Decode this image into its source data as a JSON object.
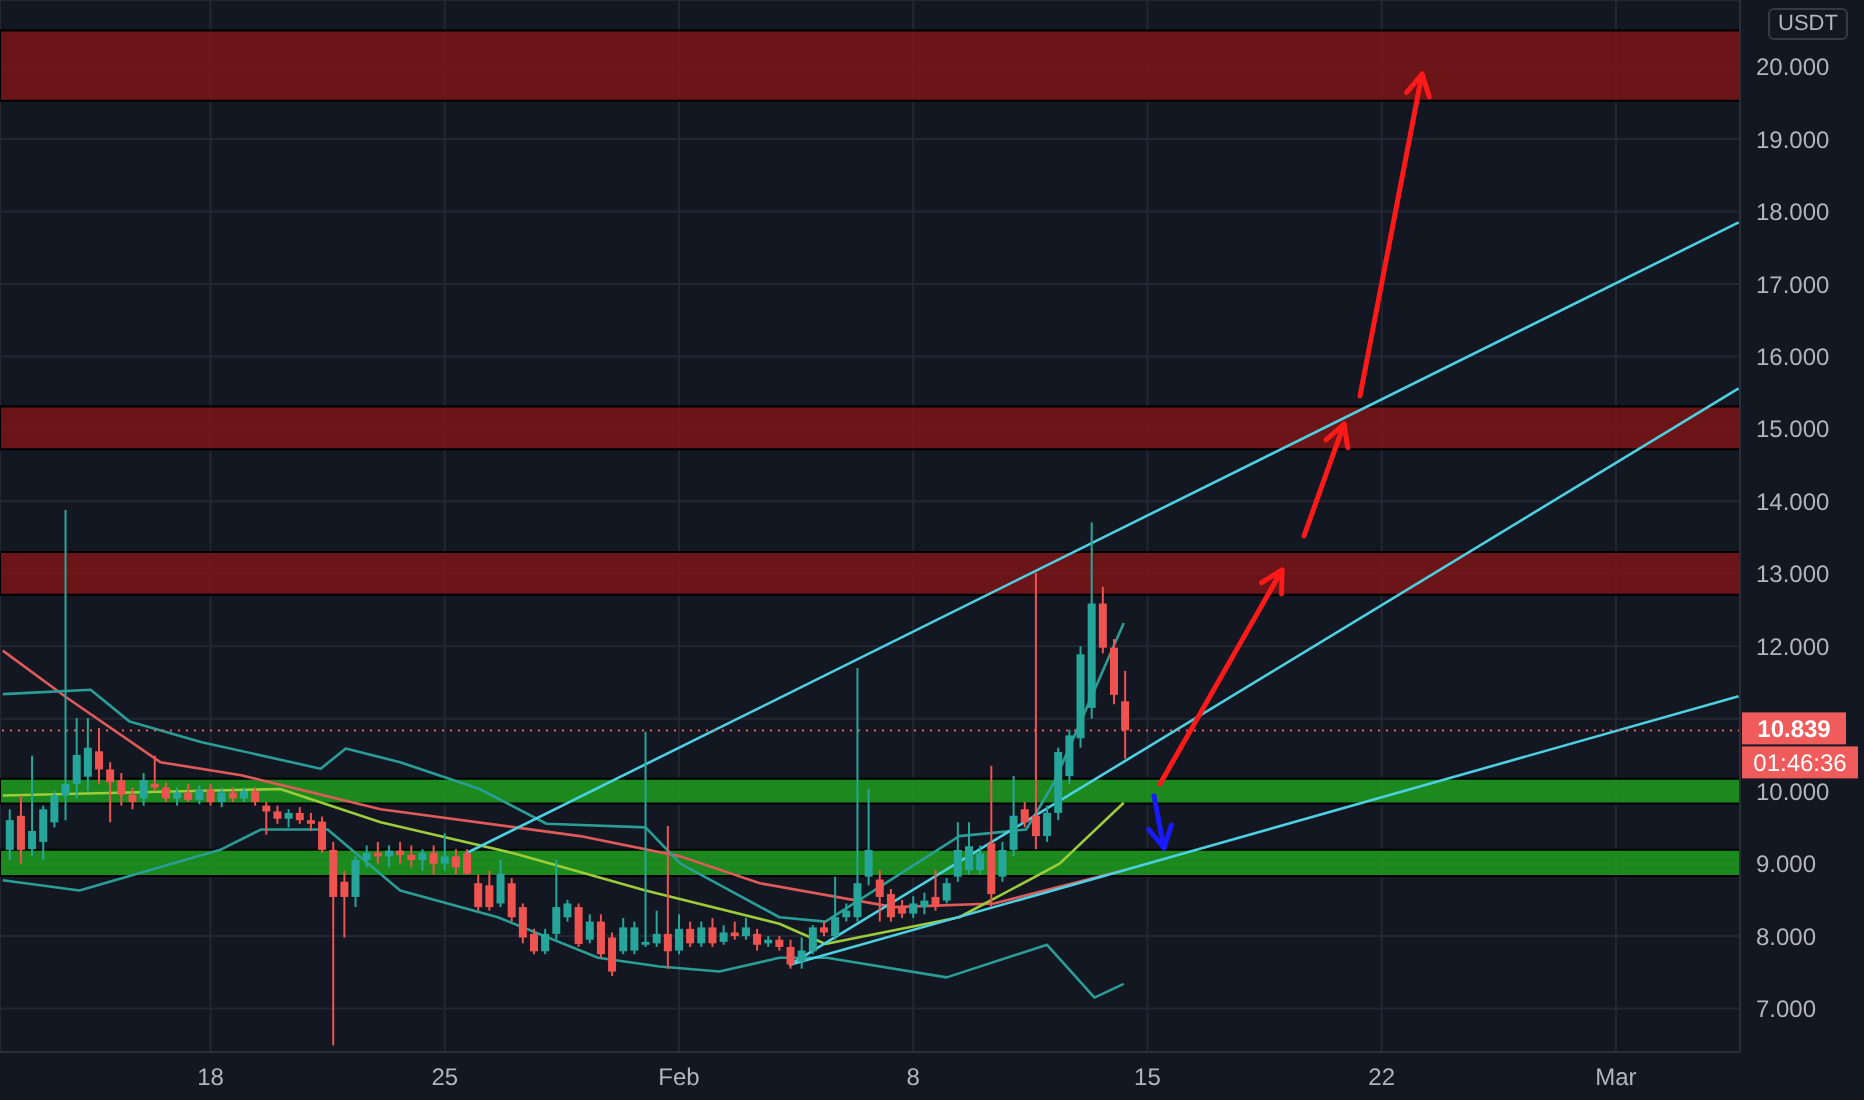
{
  "chart_data": {
    "type": "candlestick",
    "xlim": [
      "--01-11T17:00",
      "--03-04T17:00"
    ],
    "ylim": [
      6.4,
      20.92
    ],
    "xticks": [
      {
        "value": "--01-18",
        "label": "18"
      },
      {
        "value": "--01-25",
        "label": "25"
      },
      {
        "value": "--02-01",
        "label": "Feb"
      },
      {
        "value": "--02-08",
        "label": "8"
      },
      {
        "value": "--02-15",
        "label": "15"
      },
      {
        "value": "--02-22",
        "label": "22"
      },
      {
        "value": "--03-01",
        "label": "Mar"
      }
    ],
    "yticks": [
      {
        "value": 7,
        "label": "7.000"
      },
      {
        "value": 8,
        "label": "8.000"
      },
      {
        "value": 9,
        "label": "9.000"
      },
      {
        "value": 10,
        "label": "10.000"
      },
      {
        "value": 11,
        "label": null
      },
      {
        "value": 12,
        "label": "12.000"
      },
      {
        "value": 13,
        "label": "13.000"
      },
      {
        "value": 14,
        "label": "14.000"
      },
      {
        "value": 15,
        "label": "15.000"
      },
      {
        "value": 16,
        "label": "16.000"
      },
      {
        "value": 17,
        "label": "17.000"
      },
      {
        "value": 18,
        "label": "18.000"
      },
      {
        "value": 19,
        "label": "19.000"
      },
      {
        "value": 20,
        "label": "20.000"
      }
    ],
    "grid": true,
    "annotations": [
      "USDT",
      "01:46:36"
    ],
    "ref_lines": [
      {
        "axis": "y",
        "value": 10.839,
        "label": "10.839",
        "color": "#f05b5b",
        "line_style": "dotted"
      }
    ],
    "bands": [
      {
        "axis": "y",
        "from": 19.53,
        "to": 20.5,
        "color": "#7b1518"
      },
      {
        "axis": "y",
        "from": 14.72,
        "to": 15.31,
        "color": "#7b1518"
      },
      {
        "axis": "y",
        "from": 12.71,
        "to": 13.3,
        "color": "#7b1518"
      },
      {
        "axis": "y",
        "from": 9.83,
        "to": 10.17,
        "color": "#1d9e1d"
      },
      {
        "axis": "y",
        "from": 8.83,
        "to": 9.19,
        "color": "#1d9e1d"
      }
    ],
    "series": [
      {
        "type": "line",
        "color": "#e05a5a",
        "x": [
          "--01-11T19:00",
          "--01-13T17:00",
          "--01-16T12:00",
          "--01-18T22:00",
          "--01-23T02:00",
          "--01-29T01:00",
          "--02-01T01:00",
          "--02-03T10:00",
          "--02-07T10:00",
          "--02-10T10:00",
          "--02-14T07:00"
        ],
        "values": [
          11.94,
          11.29,
          10.4,
          10.22,
          9.75,
          9.38,
          9.1,
          8.73,
          8.4,
          8.45,
          8.91
        ]
      },
      {
        "type": "line",
        "color": "#2a9d96",
        "x": [
          "--01-11T19:00",
          "--01-14T10:00",
          "--01-15T14:00",
          "--01-17T17:00",
          "--01-21T07:00",
          "--01-22T01:00",
          "--01-23T16:00",
          "--01-26T01:00",
          "--01-28T01:00",
          "--01-31T00:00",
          "--02-01T01:00",
          "--02-04T00:00",
          "--02-05T09:00",
          "--02-09T09:00",
          "--02-11T09:00",
          "--02-12T05:00",
          "--02-14T07:00"
        ],
        "values": [
          11.34,
          11.4,
          10.96,
          10.68,
          10.31,
          10.59,
          10.4,
          10.03,
          9.55,
          9.5,
          9.0,
          8.26,
          8.2,
          9.38,
          9.47,
          10.12,
          12.32
        ]
      },
      {
        "type": "line",
        "color": "#9ccc3a",
        "x": [
          "--01-11T19:00",
          "--01-20T02:00",
          "--01-23T02:00",
          "--01-27T02:00",
          "--01-31T00:00",
          "--02-04T00:00",
          "--02-05T09:00",
          "--02-09T09:00",
          "--02-12T09:00",
          "--02-14T07:00"
        ],
        "values": [
          9.94,
          10.03,
          9.57,
          9.14,
          8.63,
          8.17,
          7.89,
          8.26,
          9.0,
          9.84
        ]
      },
      {
        "type": "line",
        "color": "#2a9d96",
        "x": [
          "--01-11T19:00",
          "--01-14T02:00",
          "--01-18T07:00",
          "--01-19T12:00",
          "--01-21T12:00",
          "--01-23T16:00",
          "--01-26T14:00",
          "--01-29T14:00",
          "--01-31T10:00",
          "--02-02T05:00",
          "--02-04T00:00",
          "--02-05T10:00",
          "--02-09T00:00",
          "--02-12T00:00",
          "--02-13T10:00",
          "--02-14T07:00"
        ],
        "values": [
          8.77,
          8.63,
          9.19,
          9.47,
          9.47,
          8.63,
          8.26,
          7.7,
          7.58,
          7.51,
          7.7,
          7.7,
          7.43,
          7.88,
          7.15,
          7.34
        ]
      },
      {
        "type": "line",
        "color": "#4dd0e1",
        "x": [
          "--01-25T15:00",
          "--03-04T16:00"
        ],
        "values": [
          9.14,
          17.85
        ]
      },
      {
        "type": "line",
        "color": "#4dd0e1",
        "x": [
          "--02-04T07:00",
          "--03-04T16:00"
        ],
        "values": [
          7.6,
          15.56
        ]
      },
      {
        "type": "line",
        "color": "#4dd0e1",
        "x": [
          "--02-04T07:00",
          "--03-04T16:00"
        ],
        "values": [
          7.6,
          11.31
        ]
      },
      {
        "x": [
          "--01-12T00:00",
          "--01-12T08:00",
          "--01-12T16:00",
          "--01-13T00:00",
          "--01-13T08:00",
          "--01-13T16:00",
          "--01-14T00:00",
          "--01-14T08:00",
          "--01-14T16:00",
          "--01-15T00:00",
          "--01-15T08:00",
          "--01-15T16:00",
          "--01-16T00:00",
          "--01-16T08:00",
          "--01-16T16:00",
          "--01-17T00:00",
          "--01-17T08:00",
          "--01-17T16:00",
          "--01-18T00:00",
          "--01-18T08:00",
          "--01-18T16:00",
          "--01-19T00:00",
          "--01-19T08:00",
          "--01-19T16:00",
          "--01-20T00:00",
          "--01-20T08:00",
          "--01-20T16:00",
          "--01-21T00:00",
          "--01-21T08:00",
          "--01-21T16:00",
          "--01-22T00:00",
          "--01-22T08:00",
          "--01-22T16:00",
          "--01-23T00:00",
          "--01-23T08:00",
          "--01-23T16:00",
          "--01-24T00:00",
          "--01-24T08:00",
          "--01-24T16:00",
          "--01-25T00:00",
          "--01-25T08:00",
          "--01-25T16:00",
          "--01-26T00:00",
          "--01-26T08:00",
          "--01-26T16:00",
          "--01-27T00:00",
          "--01-27T08:00",
          "--01-27T16:00",
          "--01-28T00:00",
          "--01-28T08:00",
          "--01-28T16:00",
          "--01-29T00:00",
          "--01-29T08:00",
          "--01-29T16:00",
          "--01-30T00:00",
          "--01-30T08:00",
          "--01-30T16:00",
          "--01-31T00:00",
          "--01-31T08:00",
          "--01-31T16:00",
          "--02-01T00:00",
          "--02-01T08:00",
          "--02-01T16:00",
          "--02-02T00:00",
          "--02-02T08:00",
          "--02-02T16:00",
          "--02-03T00:00",
          "--02-03T08:00",
          "--02-03T16:00",
          "--02-04T00:00",
          "--02-04T08:00",
          "--02-04T16:00",
          "--02-05T00:00",
          "--02-05T08:00",
          "--02-05T16:00",
          "--02-06T00:00",
          "--02-06T08:00",
          "--02-06T16:00",
          "--02-07T00:00",
          "--02-07T08:00",
          "--02-07T16:00",
          "--02-08T00:00",
          "--02-08T08:00",
          "--02-08T16:00",
          "--02-09T00:00",
          "--02-09T08:00",
          "--02-09T16:00",
          "--02-10T00:00",
          "--02-10T08:00",
          "--02-10T16:00",
          "--02-11T00:00",
          "--02-11T08:00",
          "--02-11T16:00",
          "--02-12T00:00",
          "--02-12T08:00",
          "--02-12T16:00",
          "--02-13T00:00",
          "--02-13T08:00",
          "--02-13T16:00",
          "--02-14T00:00",
          "--02-14T08:00"
        ],
        "ohlc": [
          [
            9.19,
            9.75,
            9.05,
            9.6
          ],
          [
            9.66,
            9.94,
            9.0,
            9.19
          ],
          [
            9.2,
            10.49,
            9.1,
            9.45
          ],
          [
            9.3,
            9.8,
            9.05,
            9.75
          ],
          [
            9.57,
            10.0,
            9.5,
            9.94
          ],
          [
            9.94,
            13.88,
            9.6,
            10.1
          ],
          [
            10.1,
            11.01,
            9.9,
            10.5
          ],
          [
            10.2,
            11.01,
            10.0,
            10.6
          ],
          [
            10.55,
            10.87,
            10.1,
            10.3
          ],
          [
            10.3,
            10.4,
            9.57,
            10.12
          ],
          [
            10.15,
            10.25,
            9.8,
            9.95
          ],
          [
            9.95,
            10.05,
            9.75,
            9.85
          ],
          [
            9.9,
            10.25,
            9.8,
            10.15
          ],
          [
            10.1,
            10.49,
            10.0,
            10.05
          ],
          [
            10.05,
            10.12,
            9.85,
            9.9
          ],
          [
            9.9,
            10.05,
            9.8,
            9.98
          ],
          [
            9.98,
            10.1,
            9.85,
            9.88
          ],
          [
            9.88,
            10.08,
            9.82,
            10.02
          ],
          [
            10.02,
            10.1,
            9.8,
            9.85
          ],
          [
            9.85,
            10.05,
            9.78,
            9.98
          ],
          [
            9.98,
            10.05,
            9.85,
            9.9
          ],
          [
            9.9,
            10.05,
            9.85,
            10.0
          ],
          [
            10.0,
            10.05,
            9.8,
            9.85
          ],
          [
            9.8,
            9.85,
            9.4,
            9.72
          ],
          [
            9.72,
            9.8,
            9.55,
            9.62
          ],
          [
            9.62,
            9.75,
            9.5,
            9.7
          ],
          [
            9.7,
            9.78,
            9.55,
            9.6
          ],
          [
            9.6,
            9.7,
            9.45,
            9.55
          ],
          [
            9.58,
            9.65,
            9.15,
            9.19
          ],
          [
            9.19,
            9.3,
            6.49,
            8.54
          ],
          [
            8.75,
            8.9,
            7.98,
            8.54
          ],
          [
            8.54,
            9.1,
            8.4,
            9.05
          ],
          [
            9.05,
            9.25,
            8.95,
            9.15
          ],
          [
            9.15,
            9.3,
            9.0,
            9.1
          ],
          [
            9.1,
            9.25,
            8.95,
            9.18
          ],
          [
            9.18,
            9.3,
            9.0,
            9.12
          ],
          [
            9.12,
            9.25,
            8.95,
            9.05
          ],
          [
            9.05,
            9.2,
            8.9,
            9.15
          ],
          [
            9.15,
            9.25,
            8.85,
            9.0
          ],
          [
            9.0,
            9.42,
            8.9,
            9.1
          ],
          [
            9.1,
            9.2,
            8.85,
            8.95
          ],
          [
            9.14,
            9.2,
            8.85,
            8.86
          ],
          [
            8.73,
            8.85,
            8.35,
            8.4
          ],
          [
            8.7,
            8.9,
            8.35,
            8.4
          ],
          [
            8.45,
            9.05,
            8.4,
            8.86
          ],
          [
            8.73,
            8.8,
            8.2,
            8.26
          ],
          [
            8.4,
            8.45,
            7.9,
            7.98
          ],
          [
            8.03,
            8.1,
            7.75,
            7.79
          ],
          [
            7.79,
            8.1,
            7.75,
            8.03
          ],
          [
            8.03,
            9.05,
            7.95,
            8.4
          ],
          [
            8.26,
            8.5,
            8.2,
            8.45
          ],
          [
            8.4,
            8.45,
            7.85,
            7.89
          ],
          [
            7.95,
            8.3,
            7.9,
            8.2
          ],
          [
            8.2,
            8.3,
            7.7,
            7.75
          ],
          [
            7.98,
            8.05,
            7.45,
            7.51
          ],
          [
            7.79,
            8.25,
            7.75,
            8.12
          ],
          [
            7.8,
            8.2,
            7.75,
            8.12
          ],
          [
            7.88,
            10.82,
            7.85,
            7.92
          ],
          [
            7.9,
            8.35,
            7.85,
            8.03
          ],
          [
            8.03,
            9.52,
            7.55,
            7.79
          ],
          [
            7.8,
            8.3,
            7.75,
            8.1
          ],
          [
            8.1,
            8.2,
            7.85,
            7.9
          ],
          [
            7.9,
            8.2,
            7.85,
            8.12
          ],
          [
            8.12,
            8.25,
            7.85,
            7.9
          ],
          [
            7.92,
            8.15,
            7.88,
            8.05
          ],
          [
            8.05,
            8.2,
            7.95,
            8.0
          ],
          [
            8.0,
            8.25,
            7.95,
            8.12
          ],
          [
            8.03,
            8.1,
            7.8,
            7.88
          ],
          [
            7.9,
            8.0,
            7.85,
            7.95
          ],
          [
            7.95,
            8.0,
            7.8,
            7.85
          ],
          [
            7.85,
            7.95,
            7.55,
            7.61
          ],
          [
            7.65,
            7.98,
            7.55,
            7.8
          ],
          [
            7.79,
            8.15,
            7.75,
            8.12
          ],
          [
            8.12,
            8.2,
            8.0,
            8.05
          ],
          [
            8.0,
            8.82,
            7.95,
            8.26
          ],
          [
            8.26,
            8.45,
            8.2,
            8.35
          ],
          [
            8.26,
            11.7,
            8.2,
            8.73
          ],
          [
            8.82,
            10.03,
            8.7,
            9.19
          ],
          [
            8.78,
            8.91,
            8.2,
            8.54
          ],
          [
            8.58,
            8.65,
            8.2,
            8.26
          ],
          [
            8.4,
            8.5,
            8.25,
            8.31
          ],
          [
            8.31,
            8.55,
            8.25,
            8.45
          ],
          [
            8.4,
            8.6,
            8.3,
            8.49
          ],
          [
            8.54,
            8.91,
            8.35,
            8.4
          ],
          [
            8.49,
            8.8,
            8.45,
            8.73
          ],
          [
            8.82,
            9.57,
            8.75,
            9.19
          ],
          [
            8.91,
            9.57,
            8.85,
            9.24
          ],
          [
            8.91,
            9.25,
            8.85,
            9.14
          ],
          [
            9.28,
            10.35,
            8.4,
            8.58
          ],
          [
            8.82,
            9.3,
            8.75,
            9.19
          ],
          [
            9.19,
            10.21,
            9.1,
            9.66
          ],
          [
            9.75,
            9.85,
            9.5,
            9.57
          ],
          [
            9.66,
            13.01,
            9.2,
            9.38
          ],
          [
            9.38,
            9.8,
            9.3,
            9.7
          ],
          [
            9.7,
            10.6,
            9.6,
            10.54
          ],
          [
            10.21,
            10.85,
            10.1,
            10.77
          ],
          [
            10.73,
            12.0,
            10.6,
            11.89
          ],
          [
            11.15,
            13.71,
            11.0,
            12.59
          ],
          [
            12.59,
            12.82,
            11.9,
            11.98
          ],
          [
            11.98,
            12.1,
            11.2,
            11.33
          ],
          [
            11.24,
            11.66,
            10.45,
            10.84
          ]
        ],
        "colors": [
          "#26a69a",
          "#ef5350",
          "#26a69a",
          "#26a69a",
          "#26a69a",
          "#26a69a",
          "#26a69a",
          "#26a69a",
          "#ef5350",
          "#ef5350",
          "#ef5350",
          "#ef5350",
          "#26a69a",
          "#ef5350",
          "#ef5350",
          "#26a69a",
          "#ef5350",
          "#26a69a",
          "#ef5350",
          "#26a69a",
          "#ef5350",
          "#26a69a",
          "#ef5350",
          "#ef5350",
          "#ef5350",
          "#26a69a",
          "#ef5350",
          "#ef5350",
          "#ef5350",
          "#ef5350",
          "#ef5350",
          "#26a69a",
          "#26a69a",
          "#ef5350",
          "#26a69a",
          "#ef5350",
          "#ef5350",
          "#26a69a",
          "#ef5350",
          "#26a69a",
          "#ef5350",
          "#ef5350",
          "#ef5350",
          "#ef5350",
          "#26a69a",
          "#ef5350",
          "#ef5350",
          "#ef5350",
          "#26a69a",
          "#26a69a",
          "#26a69a",
          "#ef5350",
          "#26a69a",
          "#ef5350",
          "#ef5350",
          "#26a69a",
          "#26a69a",
          "#26a69a",
          "#26a69a",
          "#ef5350",
          "#26a69a",
          "#ef5350",
          "#26a69a",
          "#ef5350",
          "#26a69a",
          "#ef5350",
          "#26a69a",
          "#ef5350",
          "#26a69a",
          "#ef5350",
          "#ef5350",
          "#26a69a",
          "#26a69a",
          "#ef5350",
          "#26a69a",
          "#26a69a",
          "#26a69a",
          "#26a69a",
          "#ef5350",
          "#ef5350",
          "#ef5350",
          "#26a69a",
          "#26a69a",
          "#ef5350",
          "#26a69a",
          "#26a69a",
          "#26a69a",
          "#26a69a",
          "#ef5350",
          "#26a69a",
          "#26a69a",
          "#ef5350",
          "#ef5350",
          "#26a69a",
          "#26a69a",
          "#26a69a",
          "#26a69a",
          "#26a69a",
          "#ef5350",
          "#ef5350",
          "#ef5350"
        ]
      }
    ]
  }
}
